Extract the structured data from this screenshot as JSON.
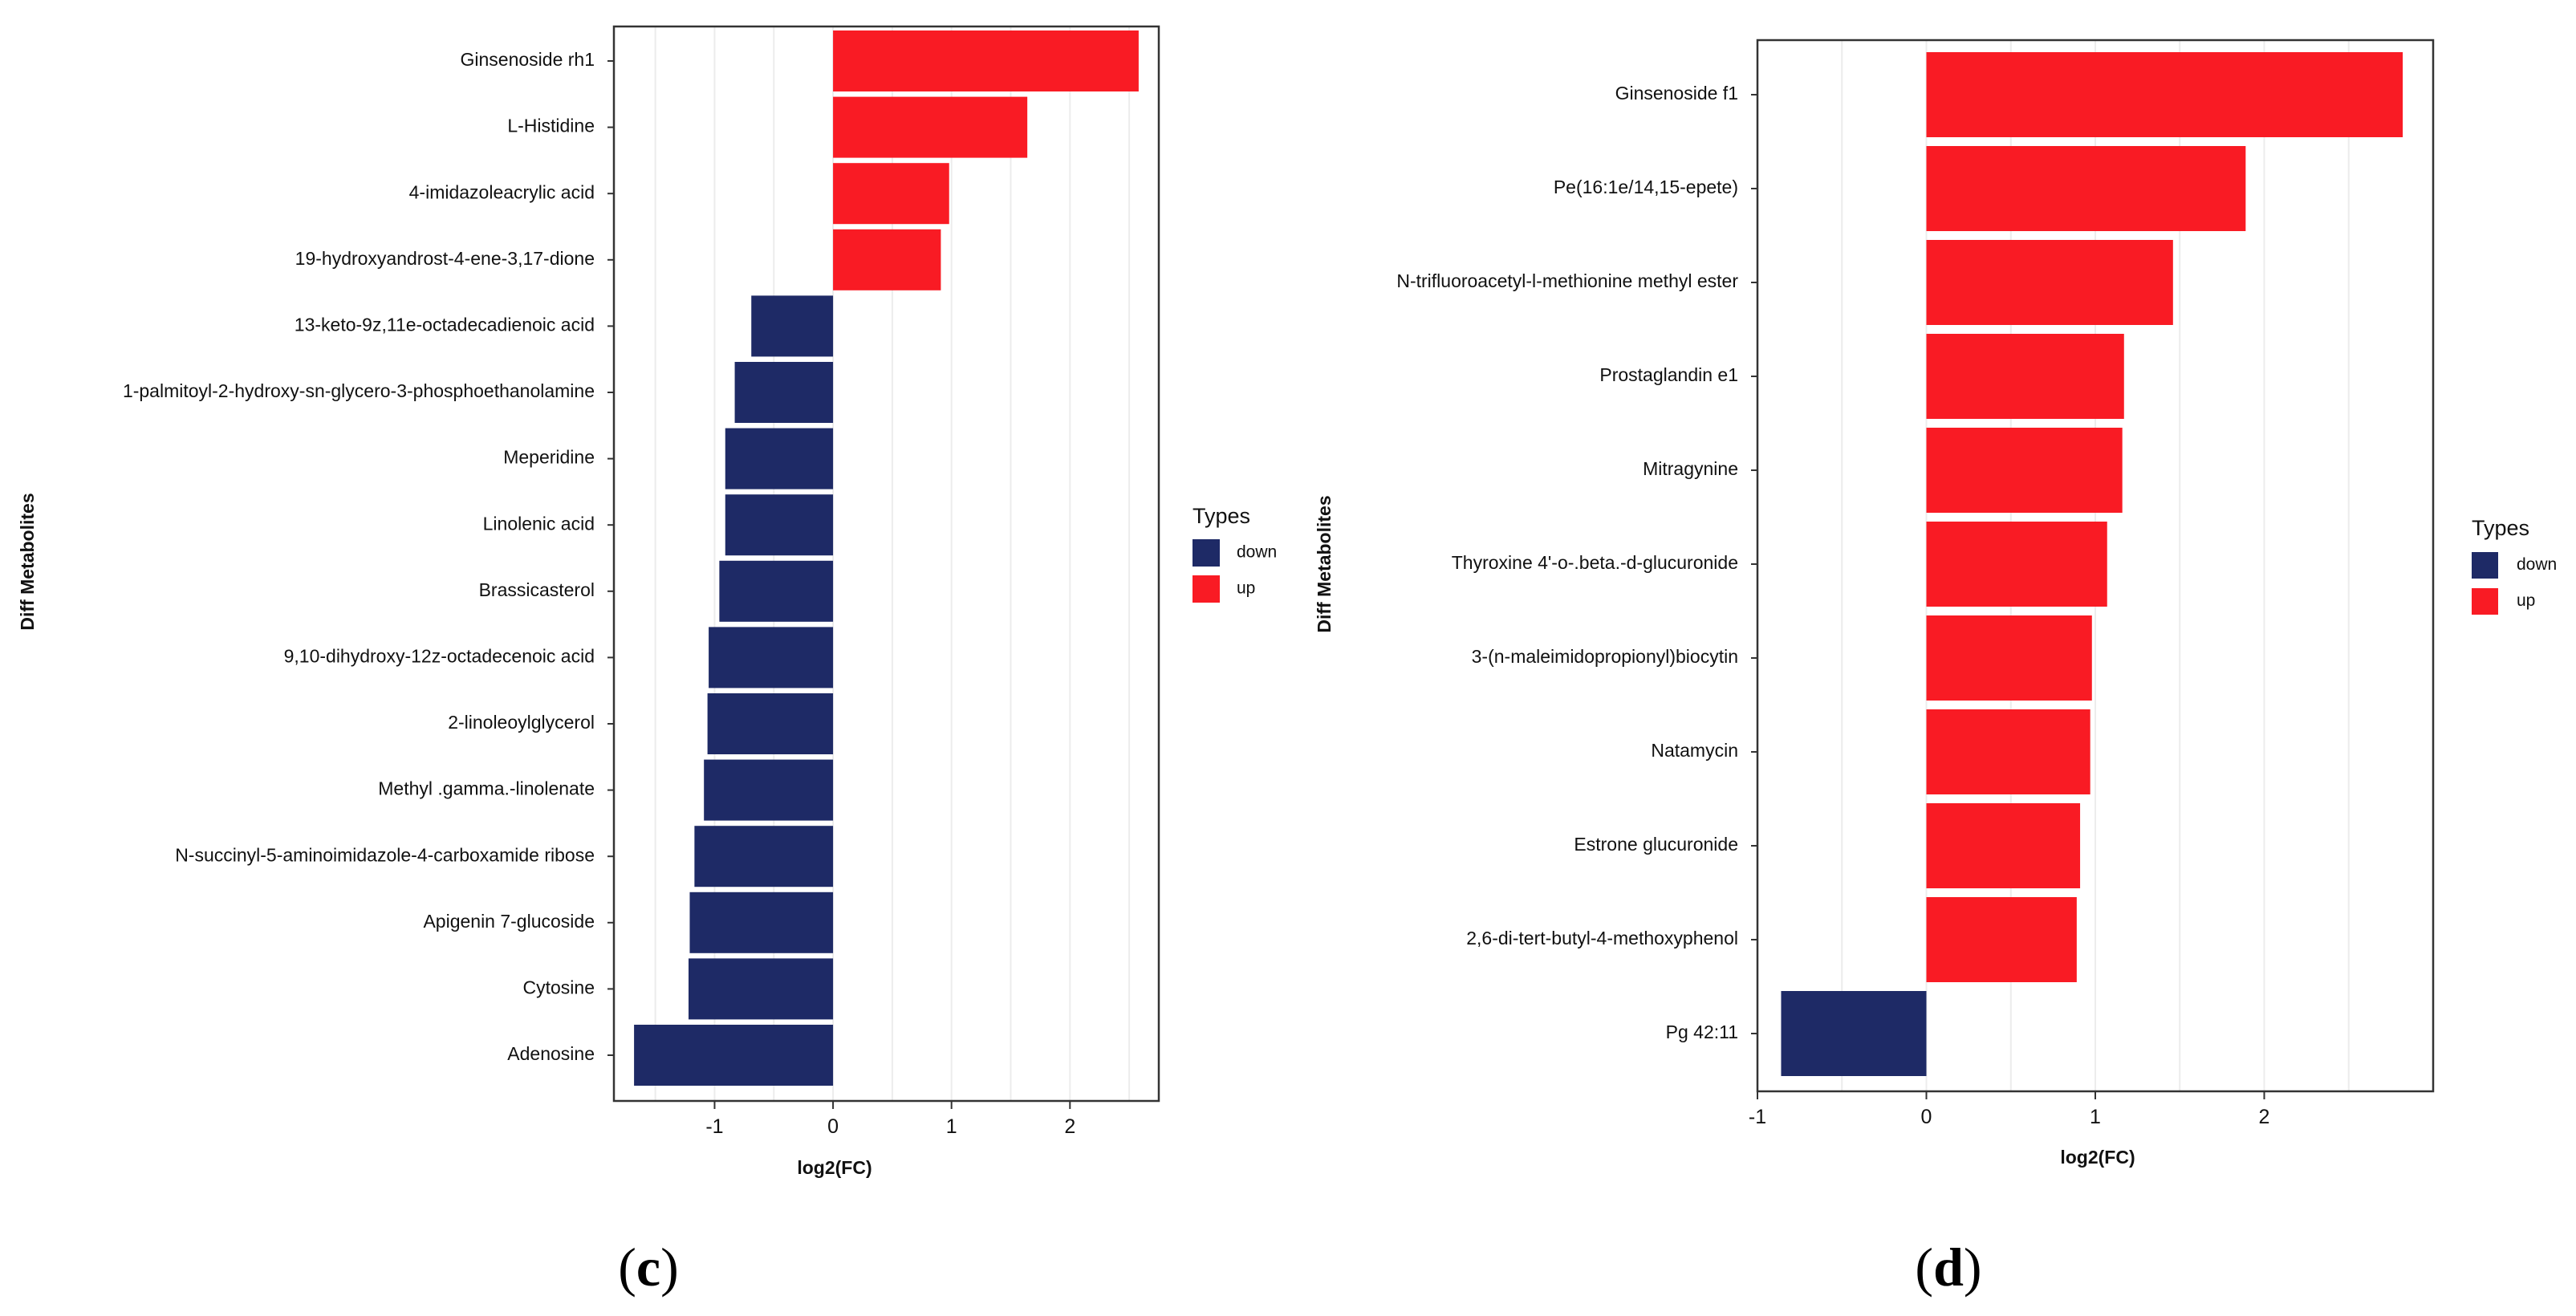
{
  "chart_data": [
    {
      "type": "bar",
      "orientation": "horizontal",
      "panel": "c",
      "title": "",
      "xlabel": "log2(FC)",
      "ylabel": "Diff Metabolites",
      "xlim": [
        -1.85,
        2.75
      ],
      "xticks": [
        -1,
        0,
        1,
        2
      ],
      "xtick_labels": [
        "-1",
        "0",
        "1",
        "2"
      ],
      "grid": true,
      "categories": [
        "Ginsenoside rh1",
        "L-Histidine",
        "4-imidazoleacrylic acid",
        "19-hydroxyandrost-4-ene-3,17-dione",
        "13-keto-9z,11e-octadecadienoic acid",
        "1-palmitoyl-2-hydroxy-sn-glycero-3-phosphoethanolamine",
        "Meperidine",
        "Linolenic acid",
        "Brassicasterol",
        "9,10-dihydroxy-12z-octadecenoic acid",
        "2-linoleoylglycerol",
        "Methyl .gamma.-linolenate",
        "N-succinyl-5-aminoimidazole-4-carboxamide ribose",
        "Apigenin 7-glucoside",
        "Cytosine",
        "Adenosine"
      ],
      "values": [
        2.58,
        1.64,
        0.98,
        0.91,
        -0.69,
        -0.83,
        -0.91,
        -0.91,
        -0.96,
        -1.05,
        -1.06,
        -1.09,
        -1.17,
        -1.21,
        -1.22,
        -1.68
      ],
      "types": [
        "up",
        "up",
        "up",
        "up",
        "down",
        "down",
        "down",
        "down",
        "down",
        "down",
        "down",
        "down",
        "down",
        "down",
        "down",
        "down"
      ],
      "legend": {
        "title": "Types",
        "entries": [
          {
            "label": "down",
            "color": "#1e2a66"
          },
          {
            "label": "up",
            "color": "#f91b24"
          }
        ]
      }
    },
    {
      "type": "bar",
      "orientation": "horizontal",
      "panel": "d",
      "title": "",
      "xlabel": "log2(FC)",
      "ylabel": "Diff Metabolites",
      "xlim": [
        -1.0,
        3.0
      ],
      "xticks": [
        -1,
        0,
        1,
        2
      ],
      "xtick_labels": [
        "-1",
        "0",
        "1",
        "2"
      ],
      "grid": true,
      "categories": [
        "Ginsenoside f1",
        "Pe(16:1e/14,15-epete)",
        "N-trifluoroacetyl-l-methionine methyl ester",
        "Prostaglandin e1",
        "Mitragynine",
        "Thyroxine 4'-o-.beta.-d-glucuronide",
        "3-(n-maleimidopropionyl)biocytin",
        "Natamycin",
        "Estrone glucuronide",
        "2,6-di-tert-butyl-4-methoxyphenol",
        "Pg 42:11"
      ],
      "values": [
        2.82,
        1.89,
        1.46,
        1.17,
        1.16,
        1.07,
        0.98,
        0.97,
        0.91,
        0.89,
        -0.86
      ],
      "types": [
        "up",
        "up",
        "up",
        "up",
        "up",
        "up",
        "up",
        "up",
        "up",
        "up",
        "down"
      ],
      "legend": {
        "title": "Types",
        "entries": [
          {
            "label": "down",
            "color": "#1e2a66"
          },
          {
            "label": "up",
            "color": "#f91b24"
          }
        ]
      }
    }
  ],
  "panel_labels": [
    "c",
    "d"
  ],
  "colors": {
    "up": "#f91b24",
    "down": "#1e2a66",
    "grid": "#ececec",
    "frame": "#333333"
  }
}
